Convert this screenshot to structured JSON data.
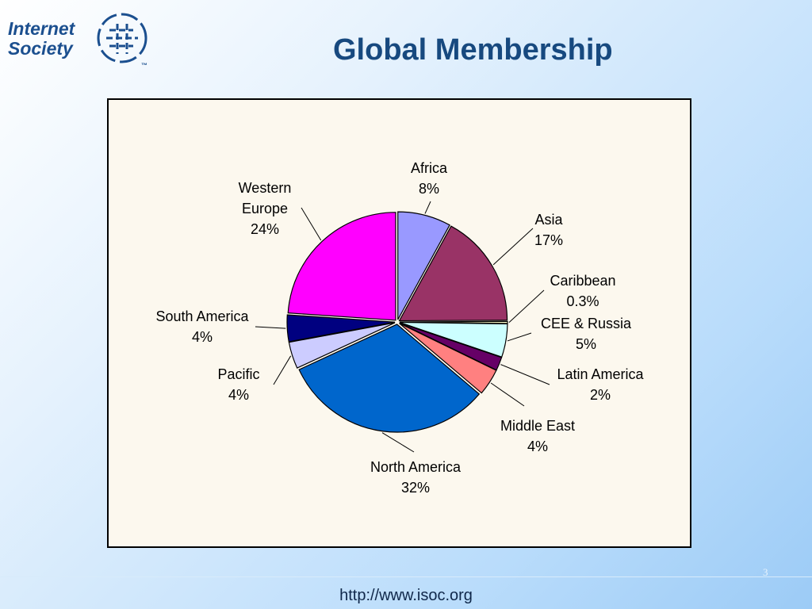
{
  "slide": {
    "logo": [
      "Internet",
      "Society"
    ],
    "logo_mark": "™",
    "footer": "http://www.isoc.org",
    "page_number": "3"
  },
  "chart_data": {
    "type": "pie",
    "title": "Global Membership",
    "categories": [
      "Africa",
      "Asia",
      "Caribbean",
      "CEE & Russia",
      "Latin America",
      "Middle East",
      "North America",
      "Pacific",
      "South America",
      "Western Europe"
    ],
    "values": [
      8,
      17,
      0.3,
      5,
      2,
      4,
      32,
      4,
      4,
      24
    ],
    "value_labels": [
      "8%",
      "17%",
      "0.3%",
      "5%",
      "2%",
      "4%",
      "32%",
      "4%",
      "4%",
      "24%"
    ],
    "colors": [
      "#9999ff",
      "#993366",
      "#ffffcc",
      "#ccffff",
      "#660066",
      "#ff8080",
      "#0066cc",
      "#ccccff",
      "#000080",
      "#ff00ff"
    ]
  }
}
